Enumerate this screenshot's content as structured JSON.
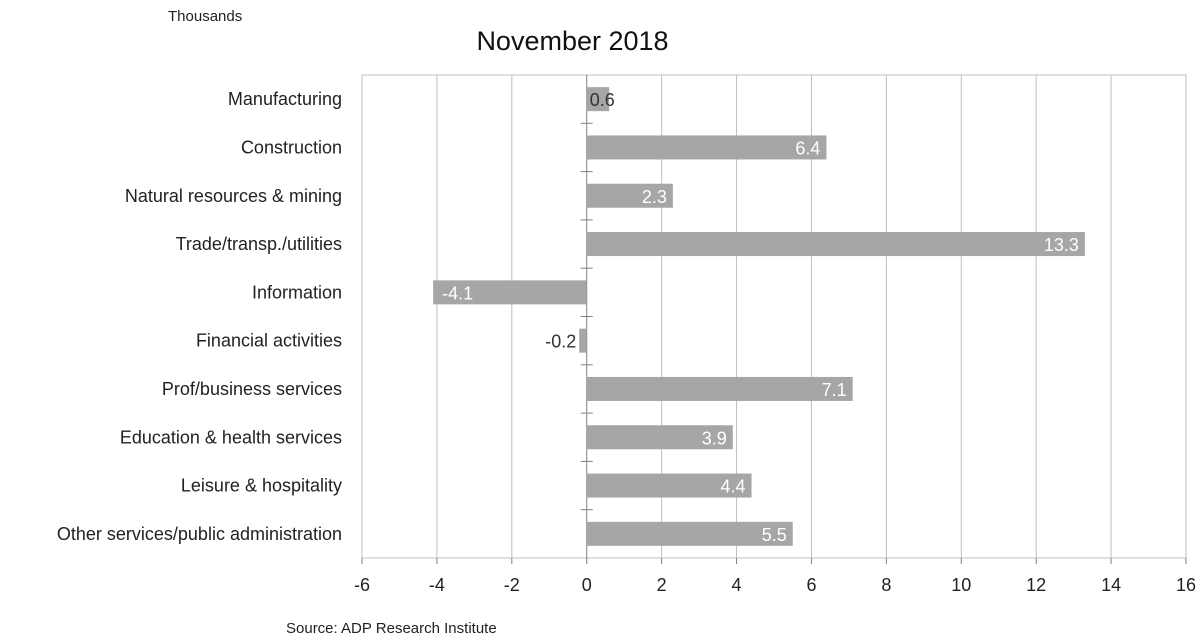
{
  "header": {
    "units_label": "Thousands",
    "source": "Source: ADP Research Institute"
  },
  "colors": {
    "bar": "#a6a6a6",
    "grid": "#bfbfbf",
    "axis": "#808080",
    "label_inside": "#ffffff",
    "label_outside": "#333333"
  },
  "chart_data": {
    "type": "bar",
    "orientation": "horizontal",
    "title": "November 2018",
    "categories": [
      "Manufacturing",
      "Construction",
      "Natural resources & mining",
      "Trade/transp./utilities",
      "Information",
      "Financial activities",
      "Prof/business services",
      "Education & health services",
      "Leisure & hospitality",
      "Other services/public administration"
    ],
    "values": [
      0.6,
      6.4,
      2.3,
      13.3,
      -4.1,
      -0.2,
      7.1,
      3.9,
      4.4,
      5.5
    ],
    "value_labels": [
      "0.6",
      "6.4",
      "2.3",
      "13.3",
      "-4.1",
      "-0.2",
      "7.1",
      "3.9",
      "4.4",
      "5.5"
    ],
    "xlim": [
      -6,
      16
    ],
    "xticks": [
      -6,
      -4,
      -2,
      0,
      2,
      4,
      6,
      8,
      10,
      12,
      14,
      16
    ],
    "grid": true,
    "legend": "none"
  }
}
